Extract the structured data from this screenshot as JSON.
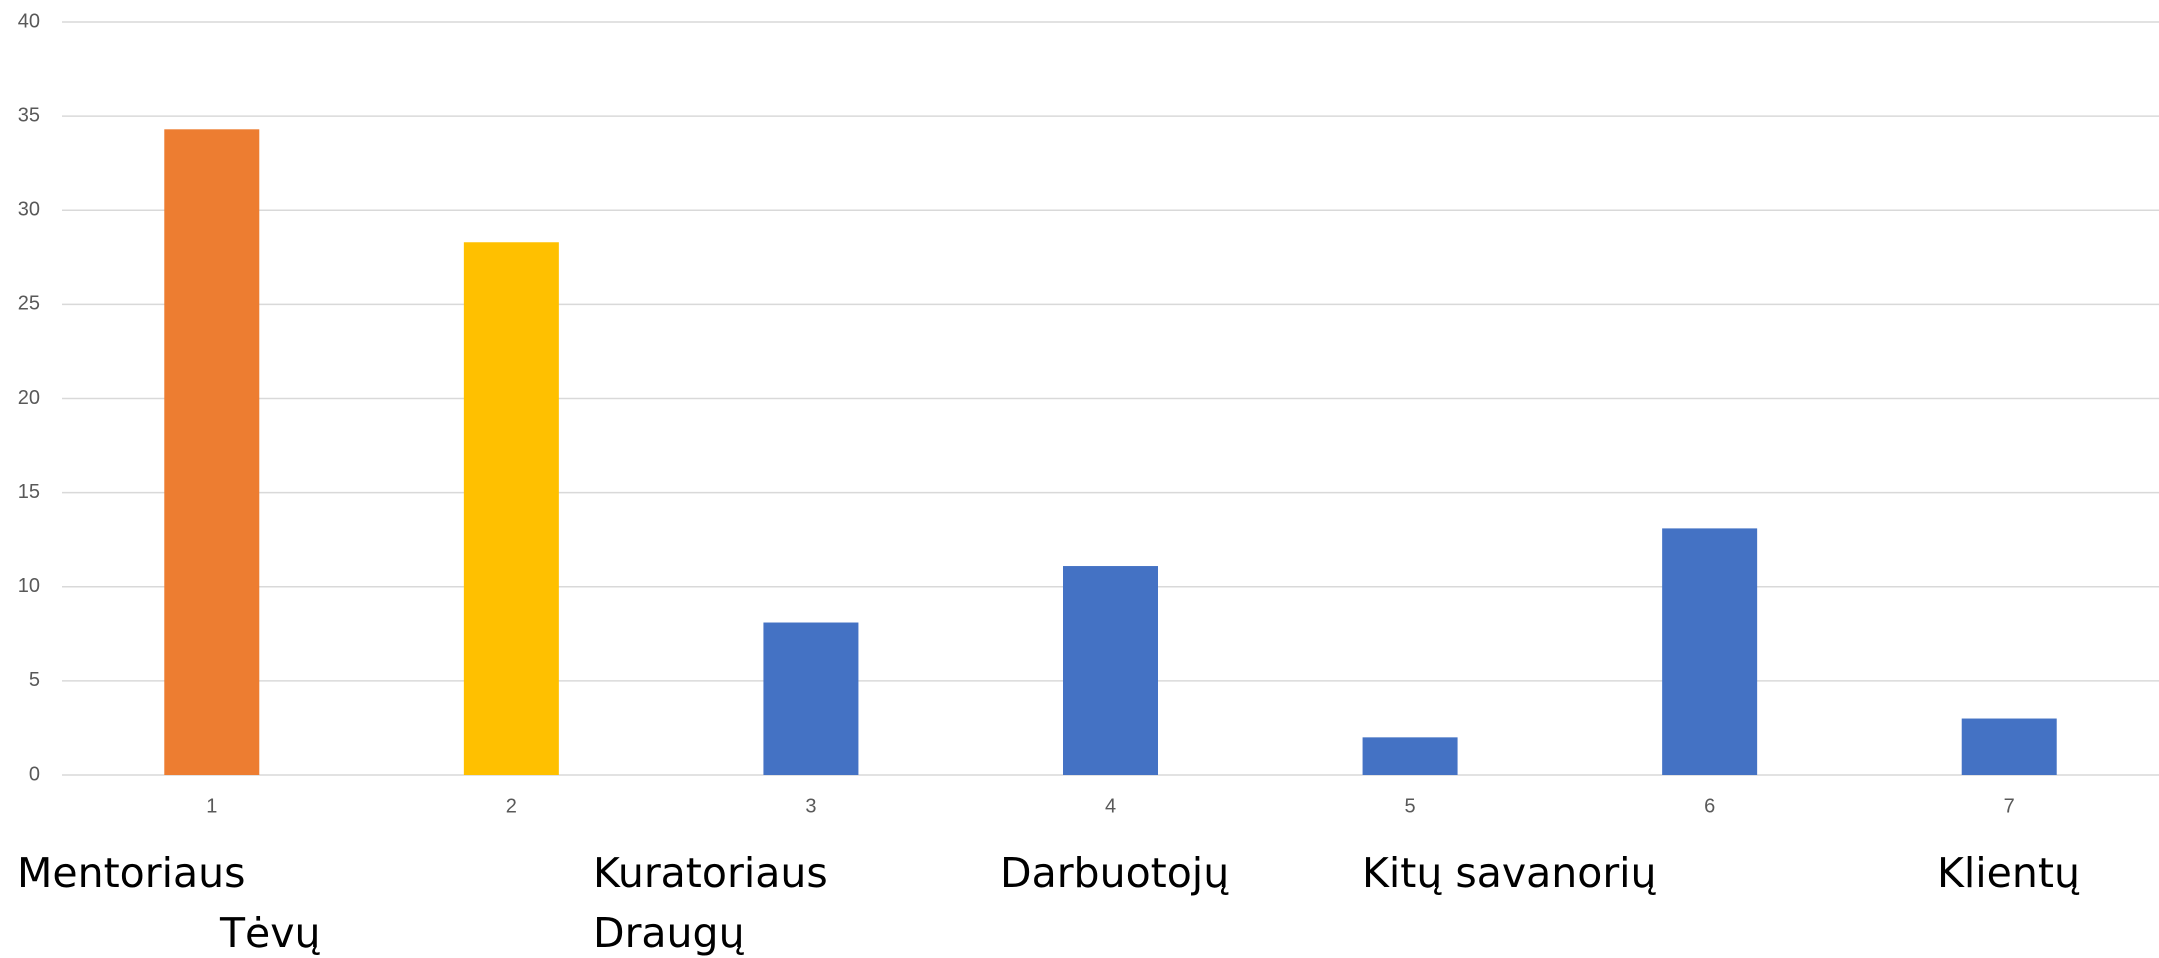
{
  "chart_data": {
    "type": "bar",
    "categories": [
      "1",
      "2",
      "3",
      "4",
      "5",
      "6",
      "7"
    ],
    "values": [
      34.3,
      28.3,
      8.1,
      11.1,
      2,
      13.1,
      3
    ],
    "colors": [
      "#ed7d31",
      "#ffc000",
      "#4472c4",
      "#4472c4",
      "#4472c4",
      "#4472c4",
      "#4472c4"
    ],
    "ylim": [
      0,
      40
    ],
    "yticks": [
      0,
      5,
      10,
      15,
      20,
      25,
      30,
      35,
      40
    ],
    "grid": true,
    "annotations": [
      "Mentoriaus",
      "Tėvų",
      "Kuratoriaus",
      "Draugų",
      "Darbuotojų",
      "Kitų savanorių",
      "Klientų"
    ]
  }
}
